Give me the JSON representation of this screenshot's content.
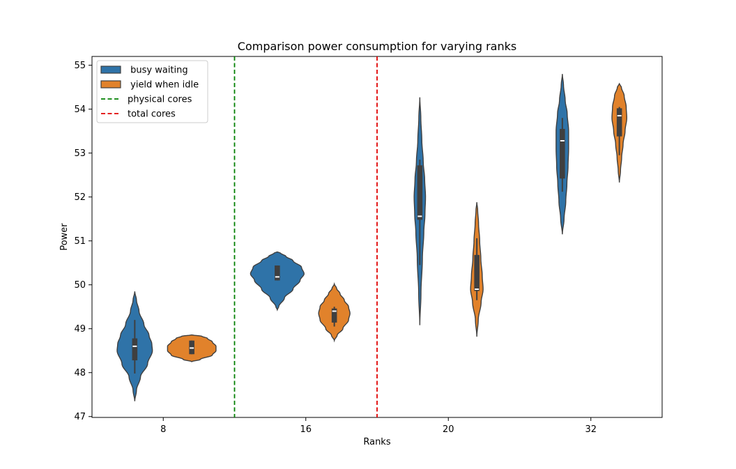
{
  "chart_data": {
    "type": "violin",
    "title": "Comparison power consumption for varying ranks",
    "xlabel": "Ranks",
    "ylabel": "Power",
    "categories": [
      "8",
      "16",
      "20",
      "32"
    ],
    "ylim": [
      46.98,
      55.2
    ],
    "yticks": [
      47,
      48,
      49,
      50,
      51,
      52,
      53,
      54,
      55
    ],
    "grid": false,
    "legend_position": "top-left",
    "series": [
      {
        "name": " busy waiting",
        "color": "#2f73a8",
        "violins": [
          {
            "min": 47.35,
            "max": 49.85,
            "q1": 48.28,
            "median": 48.6,
            "q3": 48.78,
            "whisker_low": 47.98,
            "whisker_high": 49.2,
            "profile": [
              [
                47.35,
                0.0
              ],
              [
                47.6,
                0.06
              ],
              [
                47.9,
                0.2
              ],
              [
                48.2,
                0.45
              ],
              [
                48.5,
                0.62
              ],
              [
                48.65,
                0.6
              ],
              [
                48.85,
                0.5
              ],
              [
                49.1,
                0.32
              ],
              [
                49.4,
                0.15
              ],
              [
                49.65,
                0.06
              ],
              [
                49.85,
                0.0
              ]
            ]
          },
          {
            "min": 49.43,
            "max": 50.75,
            "q1": 50.1,
            "median": 50.18,
            "q3": 50.44,
            "whisker_low": 50.1,
            "whisker_high": 50.44,
            "profile": [
              [
                49.43,
                0.0
              ],
              [
                49.5,
                0.05
              ],
              [
                49.7,
                0.25
              ],
              [
                49.9,
                0.55
              ],
              [
                50.1,
                0.8
              ],
              [
                50.25,
                0.94
              ],
              [
                50.4,
                0.85
              ],
              [
                50.55,
                0.55
              ],
              [
                50.65,
                0.3
              ],
              [
                50.72,
                0.12
              ],
              [
                50.75,
                0.0
              ]
            ]
          },
          {
            "min": 49.08,
            "max": 54.27,
            "q1": 51.48,
            "median": 51.56,
            "q3": 52.72,
            "whisker_low": 50.45,
            "whisker_high": 52.85,
            "profile": [
              [
                49.08,
                0.0
              ],
              [
                49.8,
                0.04
              ],
              [
                50.6,
                0.09
              ],
              [
                51.2,
                0.14
              ],
              [
                51.6,
                0.18
              ],
              [
                52.0,
                0.2
              ],
              [
                52.4,
                0.17
              ],
              [
                52.8,
                0.12
              ],
              [
                53.3,
                0.07
              ],
              [
                53.8,
                0.035
              ],
              [
                54.27,
                0.0
              ]
            ]
          },
          {
            "min": 51.15,
            "max": 54.8,
            "q1": 52.42,
            "median": 53.28,
            "q3": 53.55,
            "whisker_low": 52.12,
            "whisker_high": 53.8,
            "profile": [
              [
                51.15,
                0.0
              ],
              [
                51.5,
                0.06
              ],
              [
                51.9,
                0.12
              ],
              [
                52.3,
                0.16
              ],
              [
                52.7,
                0.2
              ],
              [
                53.1,
                0.22
              ],
              [
                53.5,
                0.22
              ],
              [
                53.9,
                0.17
              ],
              [
                54.2,
                0.1
              ],
              [
                54.55,
                0.04
              ],
              [
                54.8,
                0.0
              ]
            ]
          }
        ]
      },
      {
        "name": " yield when idle",
        "color": "#e1822b",
        "violins": [
          {
            "min": 48.25,
            "max": 48.86,
            "q1": 48.42,
            "median": 48.56,
            "q3": 48.73,
            "whisker_low": 48.42,
            "whisker_high": 48.73,
            "profile": [
              [
                48.25,
                0.0
              ],
              [
                48.3,
                0.3
              ],
              [
                48.4,
                0.72
              ],
              [
                48.5,
                0.85
              ],
              [
                48.6,
                0.85
              ],
              [
                48.7,
                0.72
              ],
              [
                48.78,
                0.55
              ],
              [
                48.83,
                0.35
              ],
              [
                48.86,
                0.0
              ]
            ]
          },
          {
            "min": 48.73,
            "max": 50.02,
            "q1": 49.14,
            "median": 49.4,
            "q3": 49.46,
            "whisker_low": 49.05,
            "whisker_high": 49.5,
            "profile": [
              [
                48.73,
                0.0
              ],
              [
                48.85,
                0.1
              ],
              [
                49.0,
                0.3
              ],
              [
                49.2,
                0.5
              ],
              [
                49.35,
                0.55
              ],
              [
                49.5,
                0.5
              ],
              [
                49.65,
                0.35
              ],
              [
                49.8,
                0.2
              ],
              [
                49.92,
                0.08
              ],
              [
                50.02,
                0.0
              ]
            ]
          },
          {
            "min": 48.82,
            "max": 51.88,
            "q1": 49.86,
            "median": 49.9,
            "q3": 50.68,
            "whisker_low": 49.65,
            "whisker_high": 51.06,
            "profile": [
              [
                48.82,
                0.0
              ],
              [
                49.2,
                0.05
              ],
              [
                49.6,
                0.15
              ],
              [
                49.9,
                0.22
              ],
              [
                50.2,
                0.19
              ],
              [
                50.6,
                0.14
              ],
              [
                51.0,
                0.1
              ],
              [
                51.4,
                0.06
              ],
              [
                51.7,
                0.03
              ],
              [
                51.88,
                0.0
              ]
            ]
          },
          {
            "min": 52.33,
            "max": 54.58,
            "q1": 53.38,
            "median": 53.85,
            "q3": 54.02,
            "whisker_low": 52.95,
            "whisker_high": 54.05,
            "profile": [
              [
                52.33,
                0.0
              ],
              [
                52.6,
                0.04
              ],
              [
                52.9,
                0.08
              ],
              [
                53.2,
                0.13
              ],
              [
                53.5,
                0.2
              ],
              [
                53.8,
                0.26
              ],
              [
                54.05,
                0.24
              ],
              [
                54.3,
                0.17
              ],
              [
                54.5,
                0.07
              ],
              [
                54.58,
                0.0
              ]
            ]
          }
        ]
      }
    ],
    "reference_lines": [
      {
        "name": "physical cores",
        "between": [
          "8",
          "16"
        ],
        "color": "#008000",
        "style": "dashed"
      },
      {
        "name": "total cores",
        "between": [
          "16",
          "20"
        ],
        "color": "#e00000",
        "style": "dashed"
      }
    ]
  }
}
